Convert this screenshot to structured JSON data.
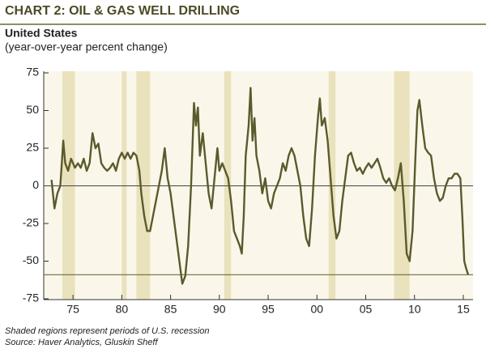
{
  "chart_data": {
    "type": "line",
    "title": "CHART 2: OIL & GAS WELL DRILLING",
    "subtitle": "United States",
    "unit_note": "(year-over-year percent change)",
    "notes": [
      "Shaded regions represent periods of U.S. recession",
      "Source: Haver Analytics, Gluskin Sheff"
    ],
    "x": [
      1972.8,
      1973.1,
      1973.4,
      1973.7,
      1974.0,
      1974.2,
      1974.5,
      1974.8,
      1975.2,
      1975.5,
      1975.8,
      1976.1,
      1976.4,
      1976.7,
      1977.0,
      1977.3,
      1977.6,
      1977.9,
      1978.2,
      1978.5,
      1978.8,
      1979.1,
      1979.4,
      1979.7,
      1980.0,
      1980.3,
      1980.6,
      1980.9,
      1981.2,
      1981.5,
      1981.8,
      1982.0,
      1982.3,
      1982.6,
      1982.9,
      1983.2,
      1983.5,
      1983.8,
      1984.1,
      1984.4,
      1984.7,
      1985.0,
      1985.3,
      1985.6,
      1985.9,
      1986.2,
      1986.5,
      1986.8,
      1987.1,
      1987.4,
      1987.6,
      1987.8,
      1988.0,
      1988.3,
      1988.6,
      1988.9,
      1989.2,
      1989.5,
      1989.8,
      1990.0,
      1990.3,
      1990.6,
      1990.9,
      1991.2,
      1991.5,
      1991.8,
      1992.1,
      1992.3,
      1992.5,
      1992.7,
      1993.0,
      1993.2,
      1993.4,
      1993.6,
      1993.8,
      1994.1,
      1994.4,
      1994.7,
      1995.0,
      1995.3,
      1995.6,
      1995.9,
      1996.2,
      1996.5,
      1996.8,
      1997.1,
      1997.4,
      1997.7,
      1998.0,
      1998.3,
      1998.6,
      1998.9,
      1999.2,
      1999.5,
      1999.8,
      2000.1,
      2000.3,
      2000.5,
      2000.8,
      2001.1,
      2001.4,
      2001.7,
      2002.0,
      2002.3,
      2002.6,
      2002.9,
      2003.2,
      2003.5,
      2003.8,
      2004.1,
      2004.4,
      2004.7,
      2005.0,
      2005.3,
      2005.6,
      2005.9,
      2006.2,
      2006.5,
      2006.8,
      2007.1,
      2007.4,
      2007.7,
      2008.0,
      2008.3,
      2008.6,
      2008.9,
      2009.2,
      2009.5,
      2009.8,
      2010.1,
      2010.3,
      2010.5,
      2010.8,
      2011.1,
      2011.4,
      2011.7,
      2012.0,
      2012.3,
      2012.6,
      2012.9,
      2013.2,
      2013.5,
      2013.8,
      2014.1,
      2014.4,
      2014.7,
      2014.9,
      2015.1,
      2015.3,
      2015.5
    ],
    "values": [
      4,
      -15,
      -5,
      0,
      30,
      15,
      10,
      18,
      12,
      15,
      12,
      18,
      10,
      15,
      35,
      25,
      28,
      15,
      12,
      10,
      12,
      15,
      10,
      18,
      22,
      18,
      22,
      18,
      22,
      20,
      10,
      -5,
      -20,
      -30,
      -30,
      -20,
      -10,
      0,
      10,
      25,
      5,
      -5,
      -20,
      -35,
      -50,
      -65,
      -60,
      -40,
      0,
      55,
      40,
      52,
      20,
      35,
      15,
      -5,
      -15,
      5,
      25,
      10,
      15,
      10,
      5,
      -10,
      -30,
      -35,
      -40,
      -45,
      -20,
      20,
      40,
      65,
      30,
      45,
      20,
      10,
      -5,
      5,
      -10,
      -15,
      -5,
      0,
      5,
      15,
      10,
      20,
      25,
      20,
      10,
      0,
      -20,
      -35,
      -40,
      -15,
      20,
      45,
      58,
      40,
      45,
      30,
      5,
      -20,
      -35,
      -30,
      -10,
      5,
      20,
      22,
      15,
      10,
      12,
      8,
      12,
      15,
      12,
      15,
      18,
      12,
      5,
      2,
      5,
      0,
      -3,
      5,
      15,
      -10,
      -45,
      -50,
      -30,
      20,
      50,
      57,
      40,
      25,
      22,
      20,
      5,
      -5,
      -10,
      -8,
      0,
      5,
      5,
      8,
      8,
      5,
      -20,
      -50,
      -55,
      -59
    ],
    "color": "#5b5a2c",
    "recessions": [
      [
        1973.9,
        1975.2
      ],
      [
        1980.0,
        1980.5
      ],
      [
        1981.5,
        1982.9
      ],
      [
        1990.5,
        1991.2
      ],
      [
        2001.2,
        2001.9
      ],
      [
        2007.9,
        2009.5
      ]
    ],
    "recession_color": "#e9e2bd",
    "reference_line": -59,
    "xlim": [
      1972,
      2016
    ],
    "ylim": [
      -75,
      75
    ],
    "xticks": [
      {
        "value": 1975,
        "label": "75"
      },
      {
        "value": 1980,
        "label": "80"
      },
      {
        "value": 1985,
        "label": "85"
      },
      {
        "value": 1990,
        "label": "90"
      },
      {
        "value": 1995,
        "label": "95"
      },
      {
        "value": 2000,
        "label": "00"
      },
      {
        "value": 2005,
        "label": "05"
      },
      {
        "value": 2010,
        "label": "10"
      },
      {
        "value": 2015,
        "label": "15"
      }
    ],
    "yticks": [
      -75,
      -50,
      -25,
      0,
      25,
      50,
      75
    ]
  }
}
